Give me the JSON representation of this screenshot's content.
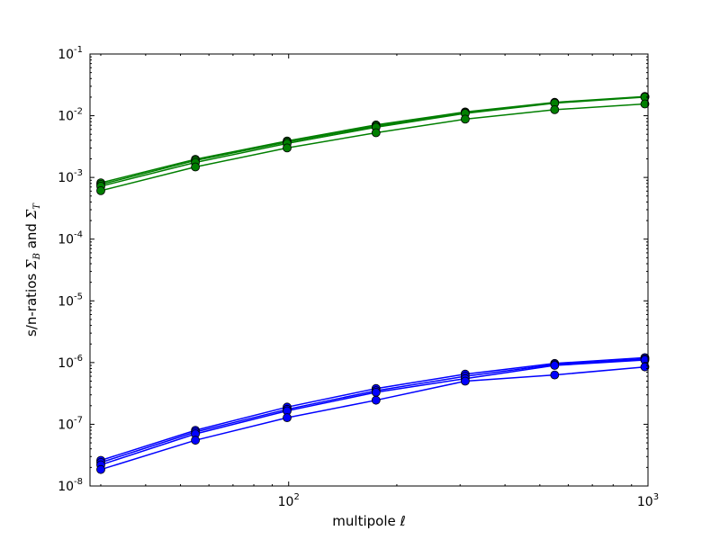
{
  "chart_data": {
    "type": "line",
    "xscale": "log",
    "yscale": "log",
    "xlim": [
      28,
      1000
    ],
    "ylim": [
      1e-08,
      0.1
    ],
    "xlabel": "multipole ℓ",
    "ylabel": {
      "prefix": "s/n-ratios ",
      "sym1": "Σ",
      "sub1": "B",
      "mid": " and ",
      "sym2": "Σ",
      "sub2": "T"
    },
    "x_ticks": [
      {
        "base": "10",
        "exp": "2",
        "value": 100
      },
      {
        "base": "10",
        "exp": "3",
        "value": 1000
      }
    ],
    "y_ticks": [
      {
        "base": "10",
        "exp": "-8",
        "value": 1e-08
      },
      {
        "base": "10",
        "exp": "-7",
        "value": 1e-07
      },
      {
        "base": "10",
        "exp": "-6",
        "value": 1e-06
      },
      {
        "base": "10",
        "exp": "-5",
        "value": 1e-05
      },
      {
        "base": "10",
        "exp": "-4",
        "value": 0.0001
      },
      {
        "base": "10",
        "exp": "-3",
        "value": 0.001
      },
      {
        "base": "10",
        "exp": "-2",
        "value": 0.01
      },
      {
        "base": "10",
        "exp": "-1",
        "value": 0.1
      }
    ],
    "x": [
      30,
      55,
      99,
      175,
      310,
      550,
      980
    ],
    "series": [
      {
        "group": "T",
        "color": "#007f00",
        "values": [
          0.00082,
          0.00197,
          0.0039,
          0.0071,
          0.0115,
          0.0165,
          0.0205
        ]
      },
      {
        "group": "T",
        "color": "#007f00",
        "values": [
          0.00077,
          0.00188,
          0.00375,
          0.0068,
          0.0112,
          0.0162,
          0.0203
        ]
      },
      {
        "group": "T",
        "color": "#007f00",
        "values": [
          0.00072,
          0.00175,
          0.00355,
          0.0065,
          0.0109,
          0.016,
          0.02
        ]
      },
      {
        "group": "T",
        "color": "#007f00",
        "values": [
          0.00061,
          0.00148,
          0.003,
          0.0053,
          0.0088,
          0.0125,
          0.0155
        ]
      },
      {
        "group": "B",
        "color": "#0000ff",
        "values": [
          2.6e-08,
          8e-08,
          1.9e-07,
          3.8e-07,
          6.5e-07,
          9.7e-07,
          1.2e-06
        ]
      },
      {
        "group": "B",
        "color": "#0000ff",
        "values": [
          2.4e-08,
          7.5e-08,
          1.75e-07,
          3.5e-07,
          6e-07,
          9.3e-07,
          1.15e-06
        ]
      },
      {
        "group": "B",
        "color": "#0000ff",
        "values": [
          2.2e-08,
          7e-08,
          1.65e-07,
          3.3e-07,
          5.5e-07,
          9e-07,
          1.1e-06
        ]
      },
      {
        "group": "B",
        "color": "#0000ff",
        "values": [
          1.85e-08,
          5.5e-08,
          1.28e-07,
          2.45e-07,
          5e-07,
          6.3e-07,
          8.5e-07
        ]
      }
    ],
    "grid": false,
    "legend": "none"
  }
}
